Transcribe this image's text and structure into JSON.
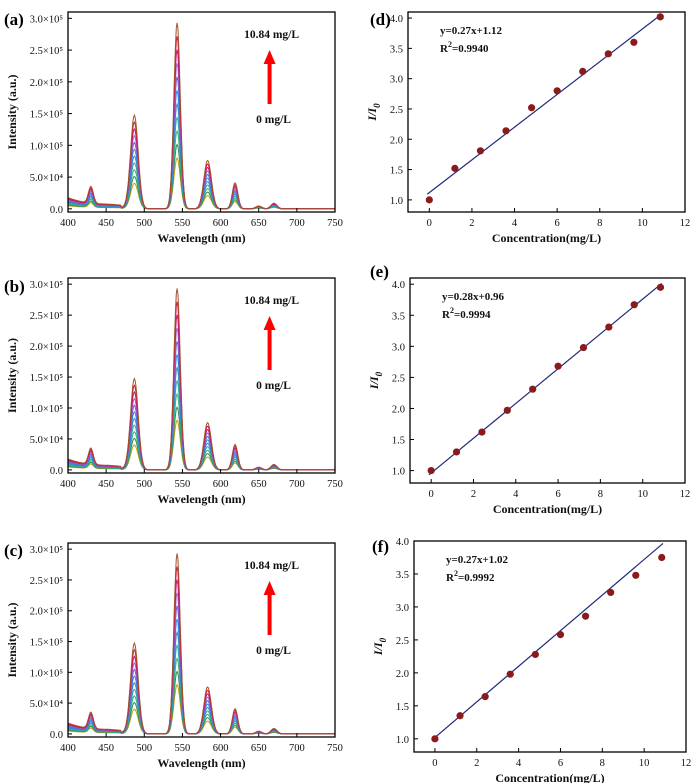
{
  "chart_data": [
    {
      "panel": "(a)",
      "type": "line",
      "xlabel": "Wavelength (nm)",
      "ylabel": "Intensity (a.u.)",
      "xlim": [
        400,
        750
      ],
      "ylim": [
        -5000,
        310000
      ],
      "x_ticks": [
        "400",
        "450",
        "500",
        "550",
        "600",
        "650",
        "700",
        "750"
      ],
      "y_ticks": [
        "0.0",
        "5.0×10⁴",
        "1.0×10⁵",
        "1.5×10⁵",
        "2.0×10⁵",
        "2.5×10⁵",
        "3.0×10⁵"
      ],
      "y_tick_values": [
        0,
        50000,
        100000,
        150000,
        200000,
        250000,
        300000
      ],
      "annotation_top": "10.84 mg/L",
      "annotation_bottom": "0 mg/L",
      "peaks_nm": [
        430,
        487,
        543,
        583,
        619,
        670
      ],
      "max_peak_intensity_high": 293000,
      "max_peak_intensity_low": 80000,
      "n_curves": 11
    },
    {
      "panel": "(b)",
      "type": "line",
      "xlabel": "Wavelength (nm)",
      "ylabel": "Intensity (a.u.)",
      "xlim": [
        400,
        750
      ],
      "ylim": [
        -5000,
        310000
      ],
      "x_ticks": [
        "400",
        "450",
        "500",
        "550",
        "600",
        "650",
        "700",
        "750"
      ],
      "y_ticks": [
        "0.0",
        "5.0×10⁴",
        "1.0×10⁵",
        "1.5×10⁵",
        "2.0×10⁵",
        "2.5×10⁵",
        "3.0×10⁵"
      ],
      "y_tick_values": [
        0,
        50000,
        100000,
        150000,
        200000,
        250000,
        300000
      ],
      "annotation_top": "10.84 mg/L",
      "annotation_bottom": "0 mg/L",
      "peaks_nm": [
        430,
        487,
        543,
        583,
        619,
        670
      ],
      "max_peak_intensity_high": 293000,
      "max_peak_intensity_low": 80000,
      "n_curves": 11
    },
    {
      "panel": "(c)",
      "type": "line",
      "xlabel": "Wavelength (nm)",
      "ylabel": "Intensity (a.u.)",
      "xlim": [
        400,
        750
      ],
      "ylim": [
        -5000,
        310000
      ],
      "x_ticks": [
        "400",
        "450",
        "500",
        "550",
        "600",
        "650",
        "700",
        "750"
      ],
      "y_ticks": [
        "0.0",
        "5.0×10⁴",
        "1.0×10⁵",
        "1.5×10⁵",
        "2.0×10⁵",
        "2.5×10⁵",
        "3.0×10⁵"
      ],
      "y_tick_values": [
        0,
        50000,
        100000,
        150000,
        200000,
        250000,
        300000
      ],
      "annotation_top": "10.84 mg/L",
      "annotation_bottom": "0 mg/L",
      "peaks_nm": [
        430,
        487,
        543,
        583,
        619,
        670
      ],
      "max_peak_intensity_high": 293000,
      "max_peak_intensity_low": 80000,
      "n_curves": 11
    },
    {
      "panel": "(d)",
      "type": "scatter",
      "xlabel": "Concentration(mg/L)",
      "ylabel": "I/I",
      "ylabel_sub": "0",
      "xlim": [
        -1,
        12
      ],
      "ylim": [
        0.8,
        4.1
      ],
      "x_ticks": [
        "0",
        "2",
        "4",
        "6",
        "8",
        "10",
        "12"
      ],
      "y_ticks": [
        "1.0",
        "1.5",
        "2.0",
        "2.5",
        "3.0",
        "3.5",
        "4.0"
      ],
      "equation": "y=0.27x+1.12",
      "r2_prefix": "R",
      "r2_sup": "2",
      "r2_value": "=0.9940",
      "fit": {
        "slope": 0.27,
        "intercept": 1.12
      },
      "x": [
        0,
        1.2,
        2.4,
        3.6,
        4.8,
        6.0,
        7.2,
        8.4,
        9.6,
        10.84
      ],
      "y": [
        1.0,
        1.52,
        1.81,
        2.14,
        2.52,
        2.8,
        3.12,
        3.41,
        3.6,
        4.02
      ]
    },
    {
      "panel": "(e)",
      "type": "scatter",
      "xlabel": "Concentration(mg/L)",
      "ylabel": "I/I",
      "ylabel_sub": "0",
      "xlim": [
        -1,
        12
      ],
      "ylim": [
        0.8,
        4.1
      ],
      "x_ticks": [
        "0",
        "2",
        "4",
        "6",
        "8",
        "10",
        "12"
      ],
      "y_ticks": [
        "1.0",
        "1.5",
        "2.0",
        "2.5",
        "3.0",
        "3.5",
        "4.0"
      ],
      "equation": "y=0.28x+0.96",
      "r2_prefix": "R",
      "r2_sup": "2",
      "r2_value": "=0.9994",
      "fit": {
        "slope": 0.28,
        "intercept": 0.96
      },
      "x": [
        0,
        1.2,
        2.4,
        3.6,
        4.8,
        6.0,
        7.2,
        8.4,
        9.6,
        10.84
      ],
      "y": [
        1.0,
        1.3,
        1.62,
        1.97,
        2.31,
        2.68,
        2.98,
        3.31,
        3.67,
        3.95
      ]
    },
    {
      "panel": "(f)",
      "type": "scatter",
      "xlabel": "Concentration(mg/L)",
      "ylabel": "I/I",
      "ylabel_sub": "0",
      "xlim": [
        -1,
        12
      ],
      "ylim": [
        0.8,
        4.0
      ],
      "x_ticks": [
        "0",
        "2",
        "4",
        "6",
        "8",
        "10",
        "12"
      ],
      "y_ticks": [
        "1.0",
        "1.5",
        "2.0",
        "2.5",
        "3.0",
        "3.5",
        "4.0"
      ],
      "equation": "y=0.27x+1.02",
      "r2_prefix": "R",
      "r2_sup": "2",
      "r2_value": "=0.9992",
      "fit": {
        "slope": 0.27,
        "intercept": 1.02
      },
      "x": [
        0,
        1.2,
        2.4,
        3.6,
        4.8,
        6.0,
        7.2,
        8.4,
        9.6,
        10.84
      ],
      "y": [
        1.0,
        1.35,
        1.64,
        1.98,
        2.28,
        2.58,
        2.86,
        3.22,
        3.48,
        3.75
      ]
    }
  ],
  "colors": {
    "arrow": "#ff0000",
    "point": "#8b1a1a",
    "fit_line": "#1f2a7a",
    "curves": [
      "#c79b00",
      "#2e8b57",
      "#3cb371",
      "#20b2aa",
      "#4682b4",
      "#1e90ff",
      "#6a5acd",
      "#9370db",
      "#c71585",
      "#dc143c",
      "#a0522d"
    ]
  }
}
